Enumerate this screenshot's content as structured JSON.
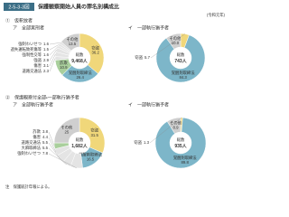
{
  "header": {
    "number": "2-5-3-3図",
    "title": "保護観察開始人員の罪名別構成比",
    "period": "(令和元年)"
  },
  "sections": [
    "①　仮釈放者",
    "②　保護観察付全部・一部執行猶予者"
  ],
  "footnote": "注　保護統計年報による。",
  "chart_data": [
    {
      "type": "pie",
      "title": "ア　全部実刑者",
      "center_label": "総数",
      "total": {
        "value": 9468,
        "label": "9,468人"
      },
      "categories": [
        "窃盗",
        "覚醒剤取締法",
        "詐欺",
        "道路交通法",
        "傷害",
        "強盗",
        "強制性交等",
        "過失運転致死傷等",
        "強制わいせつ",
        "その他"
      ],
      "values": [
        36.2,
        26.4,
        10.9,
        2.3,
        3.1,
        2.9,
        1.6,
        1.5,
        1.6,
        13.5
      ],
      "colors": [
        "#f0d77a",
        "#7db6c9",
        "#a9cf9c",
        "#e4e4e4",
        "#e4e4e4",
        "#e4e4e4",
        "#e4e4e4",
        "#e4e4e4",
        "#e4e4e4",
        "#cfcfcf"
      ]
    },
    {
      "type": "pie",
      "title": "イ　一部執行猶予者",
      "center_label": "総数",
      "total": {
        "value": 743,
        "label": "743人"
      },
      "categories": [
        "窃盗",
        "覚醒剤取締法",
        "その他"
      ],
      "values": [
        5.7,
        84.3,
        10.0
      ],
      "value_labels": [
        "5.7",
        "84.3",
        "10.0"
      ],
      "colors": [
        "#f0d77a",
        "#7db6c9",
        "#cfcfcf"
      ]
    },
    {
      "type": "pie",
      "title": "ア　全部執行猶予者",
      "center_label": "総数",
      "total": {
        "value": 1682,
        "label": "1,682人"
      },
      "categories": [
        "窃盗",
        "覚醒剤取締法",
        "強制わいせつ",
        "大麻取締法",
        "道路交通法",
        "傷害",
        "詐欺",
        "その他"
      ],
      "values": [
        31.5,
        16.5,
        7.8,
        5.5,
        5.5,
        4.4,
        3.8,
        25.0
      ],
      "colors": [
        "#f0d77a",
        "#7db6c9",
        "#e4e4e4",
        "#e4e4e4",
        "#e4e4e4",
        "#e4e4e4",
        "#a9cf9c",
        "#cfcfcf"
      ]
    },
    {
      "type": "pie",
      "title": "イ　一部執行猶予者",
      "center_label": "総数",
      "total": {
        "value": 935,
        "label": "935人"
      },
      "categories": [
        "窃盗",
        "覚醒剤取締法",
        "その他"
      ],
      "values": [
        1.3,
        89.8,
        8.9
      ],
      "colors": [
        "#f0d77a",
        "#7db6c9",
        "#cfcfcf"
      ]
    }
  ]
}
